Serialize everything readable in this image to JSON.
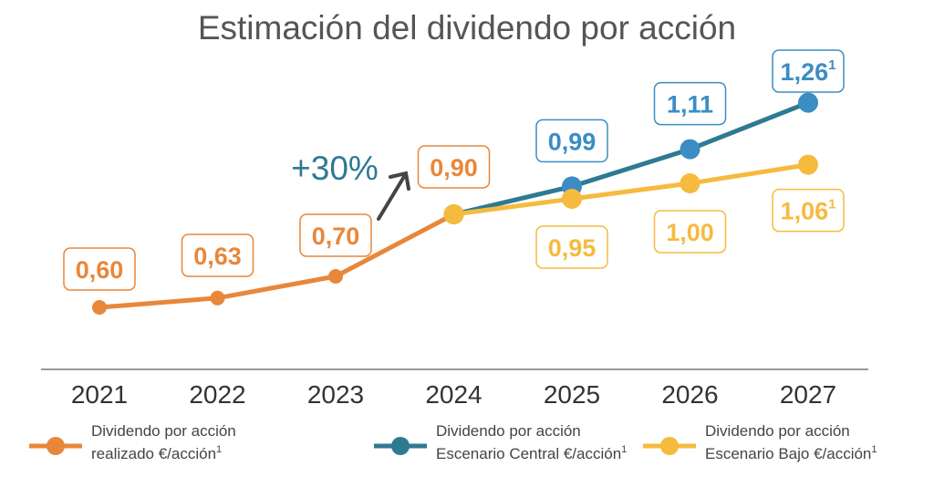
{
  "chart_data": {
    "type": "line",
    "title": "Estimación del dividendo por acción",
    "categories": [
      "2021",
      "2022",
      "2023",
      "2024",
      "2025",
      "2026",
      "2027"
    ],
    "ylim": [
      0.4,
      1.3
    ],
    "grid": false,
    "legend_position": "bottom",
    "series": [
      {
        "name_line1": "Dividendo por acción",
        "name_line2": "realizado €/acción",
        "sup": "1",
        "color": "#E8873A",
        "dot_color": "#E8873A",
        "x": [
          "2021",
          "2022",
          "2023",
          "2024"
        ],
        "values": [
          0.6,
          0.63,
          0.7,
          0.9
        ],
        "labels": [
          "0,60",
          "0,63",
          "0,70",
          "0,90"
        ],
        "label_sup": [
          "",
          "",
          "",
          ""
        ],
        "label_side": "above"
      },
      {
        "name_line1": "Dividendo por acción",
        "name_line2": "Escenario Central €/acción",
        "sup": "1",
        "color": "#2E7A92",
        "dot_color": "#3B8DC4",
        "x": [
          "2024",
          "2025",
          "2026",
          "2027"
        ],
        "values": [
          0.9,
          0.99,
          1.11,
          1.26
        ],
        "labels": [
          null,
          "0,99",
          "1,11",
          "1,26"
        ],
        "label_sup": [
          "",
          "",
          "",
          "1"
        ],
        "label_side": "above",
        "label_color": "#3B8DC4"
      },
      {
        "name_line1": "Dividendo por acción",
        "name_line2": "Escenario Bajo €/acción",
        "sup": "1",
        "color": "#F5BB3F",
        "dot_color": "#F5BB3F",
        "x": [
          "2024",
          "2025",
          "2026",
          "2027"
        ],
        "values": [
          0.9,
          0.95,
          1.0,
          1.06
        ],
        "labels": [
          null,
          "0,95",
          "1,00",
          "1,06"
        ],
        "label_sup": [
          "",
          "",
          "",
          "1"
        ],
        "label_side": "below"
      }
    ],
    "annotations": [
      {
        "text": "+30%",
        "color": "#2E7A92",
        "icon": "arrow-up-right-icon"
      }
    ]
  }
}
